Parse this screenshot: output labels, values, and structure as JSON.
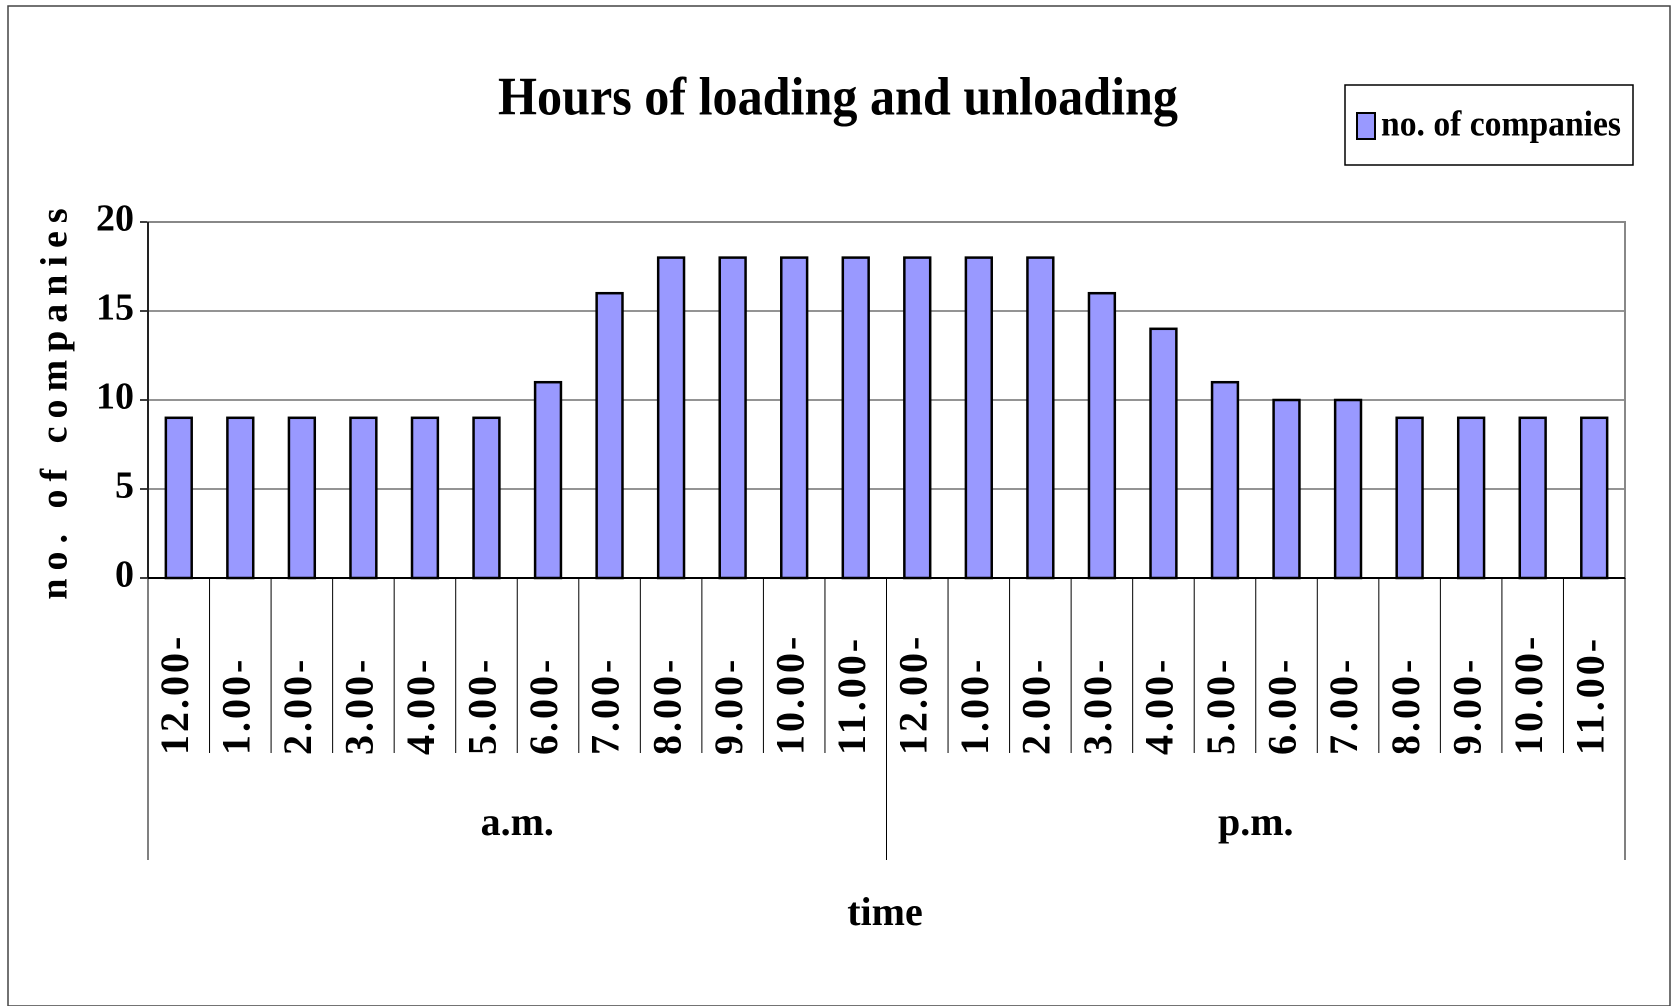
{
  "chart_data": {
    "type": "bar",
    "title": "Hours of loading and unloading",
    "x_label": "time",
    "y_label": "no. of companies",
    "categories": [
      "12.00-",
      "1.00-",
      "2.00-",
      "3.00-",
      "4.00-",
      "5.00-",
      "6.00-",
      "7.00-",
      "8.00-",
      "9.00-",
      "10.00-",
      "11.00-",
      "12.00-",
      "1.00-",
      "2.00-",
      "3.00-",
      "4.00-",
      "5.00-",
      "6.00-",
      "7.00-",
      "8.00-",
      "9.00-",
      "10.00-",
      "11.00-"
    ],
    "category_groups": [
      "a.m.",
      "p.m."
    ],
    "series": [
      {
        "name": "no. of companies",
        "color": "#9999ff",
        "values": [
          9,
          9,
          9,
          9,
          9,
          9,
          11,
          16,
          18,
          18,
          18,
          18,
          18,
          18,
          18,
          16,
          14,
          11,
          10,
          10,
          9,
          9,
          9,
          9
        ]
      }
    ],
    "ylim": [
      0,
      20
    ],
    "yticks": [
      0,
      5,
      10,
      15,
      20
    ],
    "grid": true,
    "legend": "top-right"
  }
}
